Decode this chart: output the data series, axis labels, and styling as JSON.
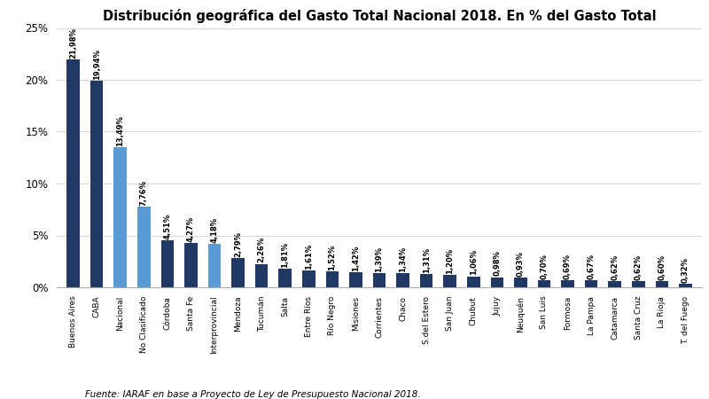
{
  "title": "Distribución geográfica del Gasto Total Nacional 2018. En % del Gasto Total",
  "source": "Fuente: IARAF en base a Proyecto de Ley de Presupuesto Nacional 2018.",
  "categories": [
    "Buenos Aires",
    "CABA",
    "Nacional",
    "No Clasificado",
    "Córdoba",
    "Santa Fe",
    "Interprovincial",
    "Mendoza",
    "Tucumán",
    "Salta",
    "Entre Ríos",
    "Río Negro",
    "Misiones",
    "Corrientes",
    "Chaco",
    "S.del Estero",
    "San Juan",
    "Chubut",
    "Jujuy",
    "Neuquén",
    "San Luis",
    "Formosa",
    "La Pampa",
    "Catamarca",
    "Santa Cruz",
    "La Rioja",
    "T. del Fuego"
  ],
  "values": [
    21.98,
    19.94,
    13.49,
    7.76,
    4.51,
    4.27,
    4.18,
    2.79,
    2.26,
    1.81,
    1.61,
    1.52,
    1.42,
    1.39,
    1.34,
    1.31,
    1.2,
    1.06,
    0.98,
    0.93,
    0.7,
    0.69,
    0.67,
    0.62,
    0.62,
    0.6,
    0.32
  ],
  "colors": [
    "#1f3864",
    "#1f3864",
    "#5b9bd5",
    "#5b9bd5",
    "#1f3864",
    "#1f3864",
    "#5b9bd5",
    "#1f3864",
    "#1f3864",
    "#1f3864",
    "#1f3864",
    "#1f3864",
    "#1f3864",
    "#1f3864",
    "#1f3864",
    "#1f3864",
    "#1f3864",
    "#1f3864",
    "#1f3864",
    "#1f3864",
    "#1f3864",
    "#1f3864",
    "#1f3864",
    "#1f3864",
    "#1f3864",
    "#1f3864",
    "#1f3864"
  ],
  "ylim": [
    0,
    25
  ],
  "yticks": [
    0,
    5,
    10,
    15,
    20,
    25
  ],
  "ytick_labels": [
    "0%",
    "5%",
    "10%",
    "15%",
    "20%",
    "25%"
  ],
  "background_color": "#ffffff",
  "title_fontsize": 10.5,
  "label_fontsize": 6.0,
  "xtick_fontsize": 6.5,
  "ytick_fontsize": 8.5,
  "source_fontsize": 7.5,
  "bar_width": 0.55
}
